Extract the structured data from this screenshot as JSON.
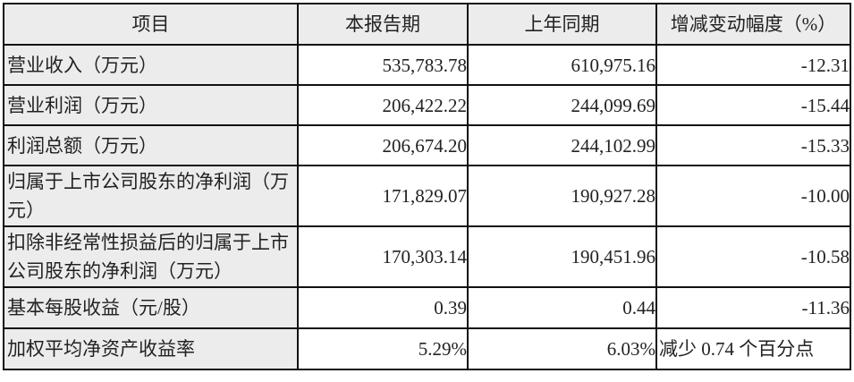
{
  "table": {
    "headers": [
      "项目",
      "本报告期",
      "上年同期",
      "增减变动幅度（%）"
    ],
    "rows": [
      {
        "item": "营业收入（万元）",
        "current": "535,783.78",
        "prior": "610,975.16",
        "change": "-12.31"
      },
      {
        "item": "营业利润（万元）",
        "current": "206,422.22",
        "prior": "244,099.69",
        "change": "-15.44"
      },
      {
        "item": "利润总额（万元）",
        "current": "206,674.20",
        "prior": "244,102.99",
        "change": "-15.33"
      },
      {
        "item": "归属于上市公司股东的净利润（万元）",
        "current": "171,829.07",
        "prior": "190,927.28",
        "change": "-10.00"
      },
      {
        "item": "扣除非经常性损益后的归属于上市公司股东的净利润（万元）",
        "current": "170,303.14",
        "prior": "190,451.96",
        "change": "-10.58"
      },
      {
        "item": "基本每股收益（元/股）",
        "current": "0.39",
        "prior": "0.44",
        "change": "-11.36"
      },
      {
        "item": "加权平均净资产收益率",
        "current": "5.29%",
        "prior": "6.03%",
        "change": "减少 0.74 个百分点"
      }
    ]
  }
}
